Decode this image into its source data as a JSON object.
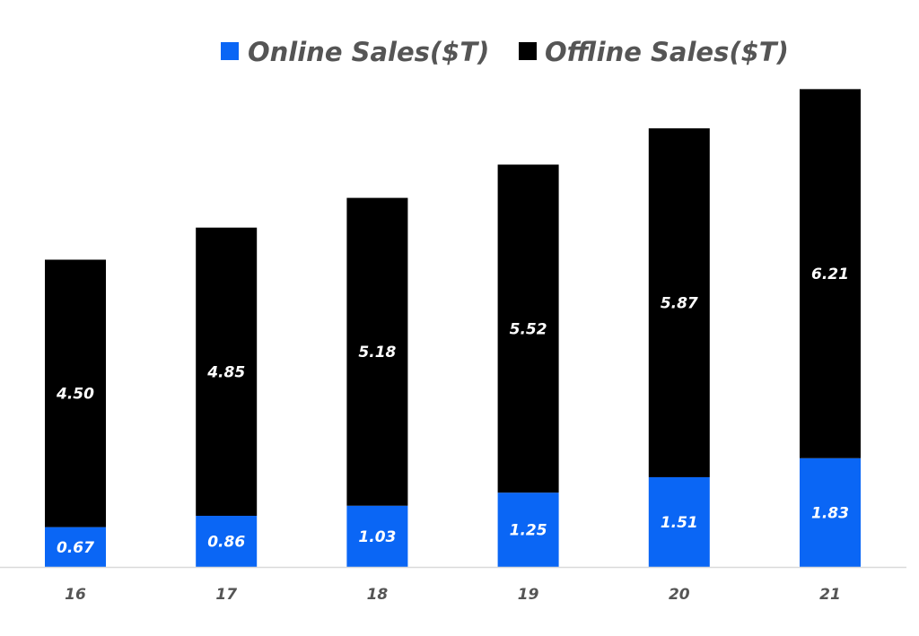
{
  "chart_data": {
    "type": "bar",
    "stacked": true,
    "title": "",
    "xlabel": "",
    "ylabel": "",
    "categories": [
      "16",
      "17",
      "18",
      "19",
      "20",
      "21"
    ],
    "series": [
      {
        "name": "Online Sales($T)",
        "color": "#0a66f5",
        "values": [
          0.67,
          0.86,
          1.03,
          1.25,
          1.51,
          1.83
        ]
      },
      {
        "name": "Offline Sales($T)",
        "color": "#000000",
        "values": [
          4.5,
          4.85,
          5.18,
          5.52,
          5.87,
          6.21
        ]
      }
    ],
    "ylim": [
      0,
      8.05
    ],
    "grid": false,
    "legend_position": "top-center",
    "data_labels": true
  }
}
